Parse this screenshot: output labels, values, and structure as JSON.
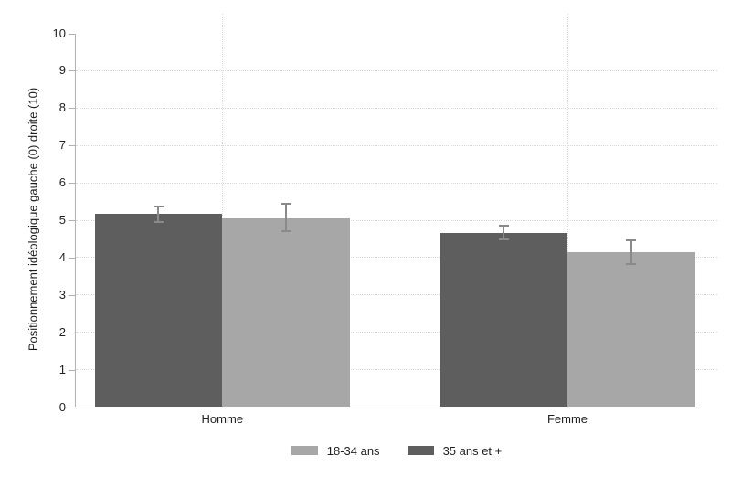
{
  "chart_data": {
    "type": "bar",
    "title": "",
    "ylabel": "Positionnement idéologique gauche (0) droite (10)",
    "xlabel": "",
    "ylim": [
      0,
      10
    ],
    "yticks": [
      "0",
      "1",
      "2",
      "3",
      "4",
      "5",
      "6",
      "7",
      "8",
      "9",
      "10"
    ],
    "grid": {
      "horizontal": "dotted, at 1 through 9",
      "vertical": "dotted, at category centers"
    },
    "legend_position": "bottom center",
    "categories": [
      "Homme",
      "Femme"
    ],
    "series": [
      {
        "name": "18-34 ans",
        "color": "#a7a7a7",
        "values": [
          5.05,
          4.15
        ],
        "ci_low": [
          4.7,
          3.82
        ],
        "ci_high": [
          5.45,
          4.46
        ]
      },
      {
        "name": "35 ans et +",
        "color": "#5e5e5e",
        "values": [
          5.17,
          4.67
        ],
        "ci_low": [
          4.95,
          4.48
        ],
        "ci_high": [
          5.36,
          4.86
        ]
      }
    ],
    "bar_display_order_left_to_right": [
      "35 ans et +",
      "18-34 ans"
    ],
    "error_bar_color": "#8a8a8a"
  },
  "legend": {
    "items": [
      {
        "label": "18-34 ans",
        "color": "#a7a7a7"
      },
      {
        "label": "35 ans et +",
        "color": "#5e5e5e"
      }
    ]
  },
  "colors": {
    "bar_dark": "#5e5e5e",
    "bar_light": "#a7a7a7",
    "error_bar": "#8a8a8a",
    "gridline": "#d9d9d9",
    "axis": "#b1b1b1",
    "text": "#1f1f1f",
    "background": "#ffffff"
  }
}
